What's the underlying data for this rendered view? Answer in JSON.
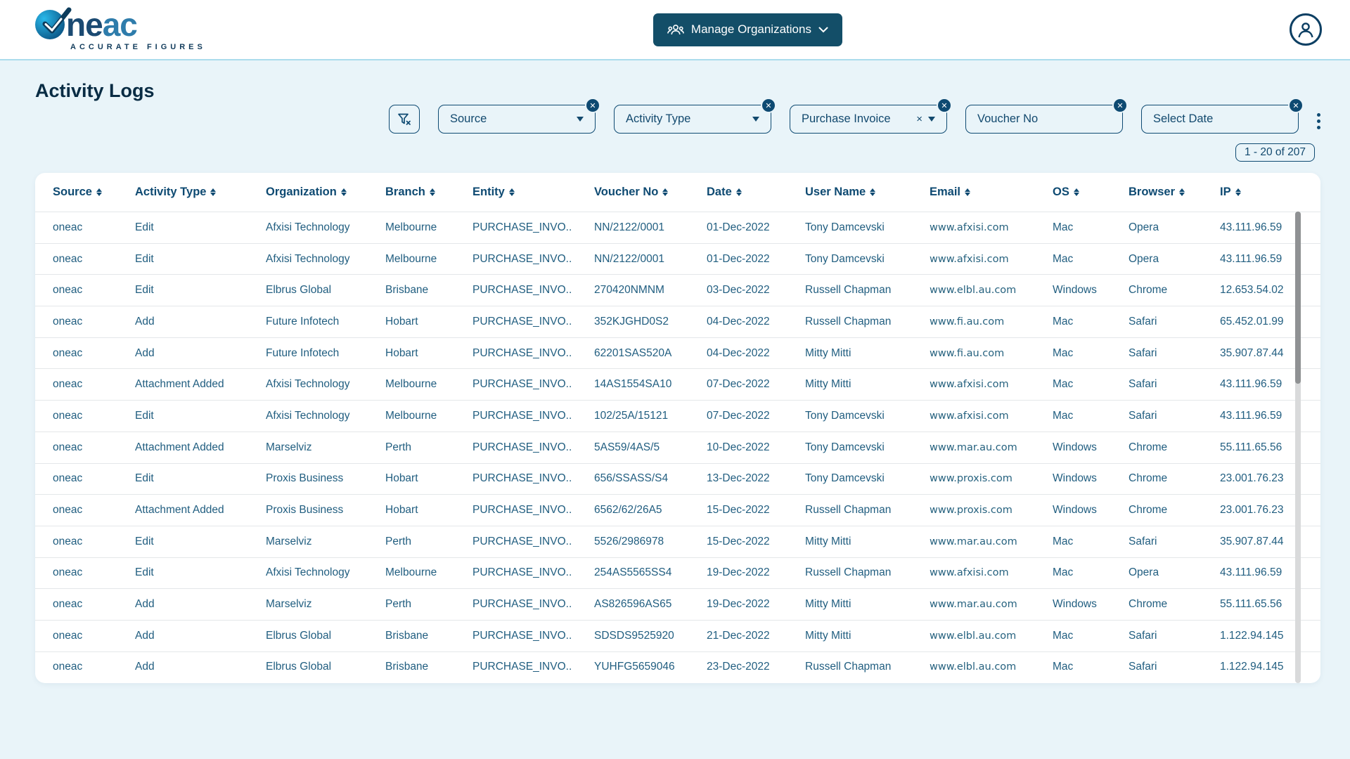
{
  "header": {
    "logo_ne": "ne",
    "logo_ac": "ac",
    "tagline": "ACCURATE FIGURES",
    "manage_orgs_label": "Manage Organizations"
  },
  "page": {
    "title": "Activity Logs",
    "pagination": "1 - 20 of 207"
  },
  "filters": [
    {
      "label": "Source",
      "kind": "select"
    },
    {
      "label": "Activity Type",
      "kind": "select"
    },
    {
      "label": "Purchase Invoice",
      "kind": "select",
      "inline_clear": "×"
    },
    {
      "label": "Voucher No",
      "kind": "input"
    },
    {
      "label": "Select Date",
      "kind": "date"
    }
  ],
  "table": {
    "columns": [
      "Source",
      "Activity Type",
      "Organization",
      "Branch",
      "Entity",
      "Voucher No",
      "Date",
      "User Name",
      "Email",
      "OS",
      "Browser",
      "IP"
    ],
    "rows": [
      [
        "oneac",
        "Edit",
        "Afxisi Technology",
        "Melbourne",
        "PURCHASE_INVO..",
        "NN/2122/0001",
        "01-Dec-2022",
        "Tony Damcevski",
        "www.afxisi.com",
        "Mac",
        "Opera",
        "43.111.96.59"
      ],
      [
        "oneac",
        "Edit",
        "Afxisi Technology",
        "Melbourne",
        "PURCHASE_INVO..",
        "NN/2122/0001",
        "01-Dec-2022",
        "Tony Damcevski",
        "www.afxisi.com",
        "Mac",
        "Opera",
        "43.111.96.59"
      ],
      [
        "oneac",
        "Edit",
        "Elbrus Global",
        "Brisbane",
        "PURCHASE_INVO..",
        "270420NMNM",
        "03-Dec-2022",
        "Russell Chapman",
        "www.elbl.au.com",
        "Windows",
        "Chrome",
        "12.653.54.02"
      ],
      [
        "oneac",
        "Add",
        "Future Infotech",
        "Hobart",
        "PURCHASE_INVO..",
        "352KJGHD0S2",
        "04-Dec-2022",
        "Russell Chapman",
        "www.fi.au.com",
        "Mac",
        "Safari",
        "65.452.01.99"
      ],
      [
        "oneac",
        "Add",
        "Future Infotech",
        "Hobart",
        "PURCHASE_INVO..",
        "62201SAS520A",
        "04-Dec-2022",
        "Mitty Mitti",
        "www.fi.au.com",
        "Mac",
        "Safari",
        "35.907.87.44"
      ],
      [
        "oneac",
        "Attachment Added",
        "Afxisi Technology",
        "Melbourne",
        "PURCHASE_INVO..",
        "14AS1554SA10",
        "07-Dec-2022",
        "Mitty Mitti",
        "www.afxisi.com",
        "Mac",
        "Safari",
        "43.111.96.59"
      ],
      [
        "oneac",
        "Edit",
        "Afxisi Technology",
        "Melbourne",
        "PURCHASE_INVO..",
        "102/25A/15121",
        "07-Dec-2022",
        "Tony Damcevski",
        "www.afxisi.com",
        "Mac",
        "Safari",
        "43.111.96.59"
      ],
      [
        "oneac",
        "Attachment Added",
        "Marselviz",
        "Perth",
        "PURCHASE_INVO..",
        "5AS59/4AS/5",
        "10-Dec-2022",
        "Tony Damcevski",
        "www.mar.au.com",
        "Windows",
        "Chrome",
        "55.111.65.56"
      ],
      [
        "oneac",
        "Edit",
        "Proxis Business",
        "Hobart",
        "PURCHASE_INVO..",
        "656/SSASS/S4",
        "13-Dec-2022",
        "Tony Damcevski",
        "www.proxis.com",
        "Windows",
        "Chrome",
        "23.001.76.23"
      ],
      [
        "oneac",
        "Attachment Added",
        "Proxis Business",
        "Hobart",
        "PURCHASE_INVO..",
        "6562/62/26A5",
        "15-Dec-2022",
        "Russell Chapman",
        "www.proxis.com",
        "Windows",
        "Chrome",
        "23.001.76.23"
      ],
      [
        "oneac",
        "Edit",
        "Marselviz",
        "Perth",
        "PURCHASE_INVO..",
        "5526/2986978",
        "15-Dec-2022",
        "Mitty Mitti",
        "www.mar.au.com",
        "Mac",
        "Safari",
        "35.907.87.44"
      ],
      [
        "oneac",
        "Edit",
        "Afxisi Technology",
        "Melbourne",
        "PURCHASE_INVO..",
        "254AS5565SS4",
        "19-Dec-2022",
        "Russell Chapman",
        "www.afxisi.com",
        "Mac",
        "Opera",
        "43.111.96.59"
      ],
      [
        "oneac",
        "Add",
        "Marselviz",
        "Perth",
        "PURCHASE_INVO..",
        "AS826596AS65",
        "19-Dec-2022",
        "Mitty Mitti",
        "www.mar.au.com",
        "Windows",
        "Chrome",
        "55.111.65.56"
      ],
      [
        "oneac",
        "Add",
        "Elbrus Global",
        "Brisbane",
        "PURCHASE_INVO..",
        "SDSDS9525920",
        "21-Dec-2022",
        "Mitty Mitti",
        "www.elbl.au.com",
        "Mac",
        "Safari",
        "1.122.94.145"
      ],
      [
        "oneac",
        "Add",
        "Elbrus Global",
        "Brisbane",
        "PURCHASE_INVO..",
        "YUHFG5659046",
        "23-Dec-2022",
        "Russell Chapman",
        "www.elbl.au.com",
        "Mac",
        "Safari",
        "1.122.94.145"
      ]
    ]
  },
  "colors": {
    "accent_navy": "#0e4a72",
    "button_bg": "#134e68",
    "page_bg": "#e9f4f9",
    "title": "#092c44",
    "cell_text": "#215e80"
  }
}
